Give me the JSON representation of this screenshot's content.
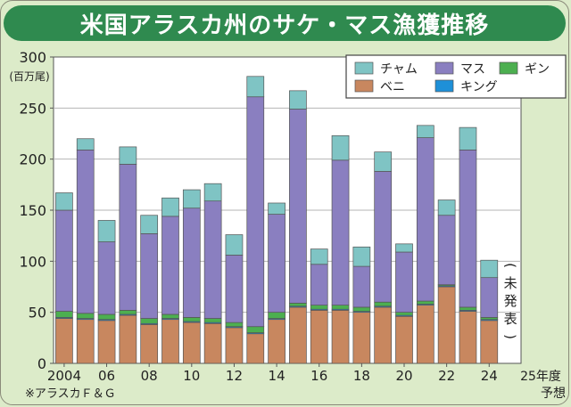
{
  "title": "米国アラスカ州のサケ・マス漁獲推移",
  "chart_data": {
    "type": "bar",
    "stacked": true,
    "title": "米国アラスカ州のサケ・マス漁獲推移",
    "ylabel": "(百万尾)",
    "ylim": [
      0,
      300
    ],
    "yticks": [
      0,
      50,
      100,
      150,
      200,
      250,
      300
    ],
    "years": [
      "2004",
      "2005",
      "2006",
      "2007",
      "2008",
      "2009",
      "2010",
      "2011",
      "2012",
      "2013",
      "2014",
      "2015",
      "2016",
      "2017",
      "2018",
      "2019",
      "2020",
      "2021",
      "2022",
      "2023",
      "2024",
      "2025"
    ],
    "x_tick_labels": [
      {
        "index": 0,
        "label": "2004"
      },
      {
        "index": 2,
        "label": "06"
      },
      {
        "index": 4,
        "label": "08"
      },
      {
        "index": 6,
        "label": "10"
      },
      {
        "index": 8,
        "label": "12"
      },
      {
        "index": 10,
        "label": "14"
      },
      {
        "index": 12,
        "label": "16"
      },
      {
        "index": 14,
        "label": "18"
      },
      {
        "index": 16,
        "label": "20"
      },
      {
        "index": 18,
        "label": "22"
      },
      {
        "index": 20,
        "label": "24"
      }
    ],
    "forecast_label": "25年度",
    "forecast_sublabel": "予想",
    "pending_label": [
      "(",
      "未",
      "発",
      "表",
      ")"
    ],
    "series": [
      {
        "name": "ベニ",
        "color": "#c8875f",
        "values": [
          44,
          43,
          42,
          47,
          38,
          43,
          40,
          39,
          35,
          29,
          43,
          55,
          52,
          52,
          50,
          55,
          46,
          57,
          75,
          51,
          42
        ]
      },
      {
        "name": "キング",
        "color": "#1e90d8",
        "values": [
          1,
          1,
          1,
          1,
          1,
          1,
          1,
          1,
          1,
          1,
          1,
          1,
          1,
          1,
          1,
          1,
          1,
          1,
          1,
          1,
          1
        ]
      },
      {
        "name": "ギン",
        "color": "#4caf50",
        "values": [
          6,
          5,
          5,
          4,
          5,
          4,
          4,
          4,
          4,
          6,
          6,
          3,
          4,
          4,
          4,
          4,
          3,
          3,
          1,
          3,
          2
        ]
      },
      {
        "name": "マス",
        "color": "#8a7fc0",
        "values": [
          99,
          160,
          71,
          143,
          83,
          96,
          107,
          115,
          66,
          225,
          96,
          190,
          40,
          142,
          40,
          128,
          59,
          160,
          68,
          154,
          39
        ]
      },
      {
        "name": "チャム",
        "color": "#7fc4c4",
        "values": [
          17,
          11,
          21,
          17,
          18,
          18,
          18,
          17,
          20,
          20,
          11,
          18,
          15,
          24,
          19,
          19,
          8,
          12,
          15,
          22,
          17
        ]
      }
    ],
    "legend": [
      {
        "name": "チャム",
        "color": "#7fc4c4"
      },
      {
        "name": "マス",
        "color": "#8a7fc0"
      },
      {
        "name": "ギン",
        "color": "#4caf50"
      },
      {
        "name": "ベニ",
        "color": "#c8875f"
      },
      {
        "name": "キング",
        "color": "#1e90d8"
      }
    ],
    "source": "※アラスカＦ＆Ｇ"
  }
}
